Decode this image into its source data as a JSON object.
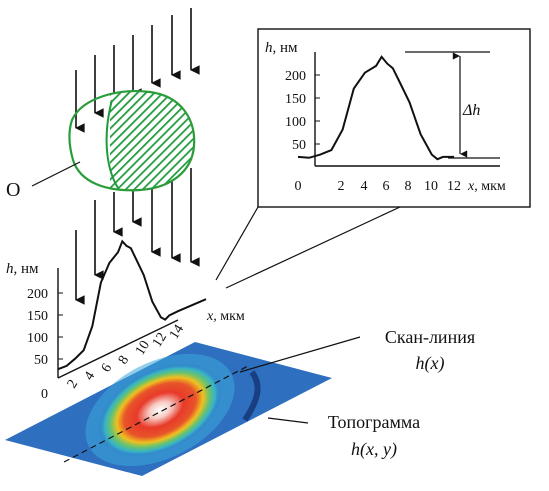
{
  "object_label": "O",
  "inset": {
    "y_axis_var": "h",
    "y_axis_unit": ", нм",
    "x_axis_var": "x",
    "x_axis_unit": ", мкм",
    "y_ticks": [
      "200",
      "150",
      "100",
      "50"
    ],
    "x_ticks": [
      "0",
      "2",
      "4",
      "6",
      "8",
      "10",
      "12"
    ],
    "delta_label": "Δh"
  },
  "profile3d": {
    "y_axis_var": "h",
    "y_axis_unit": ", нм",
    "x_axis_var": "x",
    "x_axis_unit": ", мкм",
    "y_ticks": [
      "200",
      "150",
      "100",
      "50",
      "0"
    ],
    "x_ticks": [
      "2",
      "4",
      "6",
      "8",
      "10",
      "12",
      "14"
    ]
  },
  "scan_line": {
    "title": "Скан-линия",
    "formula": "h(x)"
  },
  "topogram": {
    "title": "Топограмма",
    "formula": "h(x, y)"
  },
  "colors": {
    "object_outline": "#2a9d3a",
    "object_fill": "#1f9a3c",
    "map_background": "#2f6fc0",
    "map_hot": "#e83a2a",
    "map_warm": "#f0c020"
  },
  "chart_data": {
    "type": "line",
    "x": [
      0,
      1,
      2,
      3,
      4,
      5,
      6,
      7,
      7.5,
      8,
      8.5,
      9,
      10,
      11,
      12,
      12.5,
      13,
      14
    ],
    "values": [
      20,
      18,
      25,
      35,
      80,
      170,
      205,
      220,
      240,
      225,
      215,
      190,
      140,
      70,
      25,
      15,
      20,
      20
    ],
    "xlim": [
      0,
      14
    ],
    "ylim": [
      0,
      250
    ]
  }
}
